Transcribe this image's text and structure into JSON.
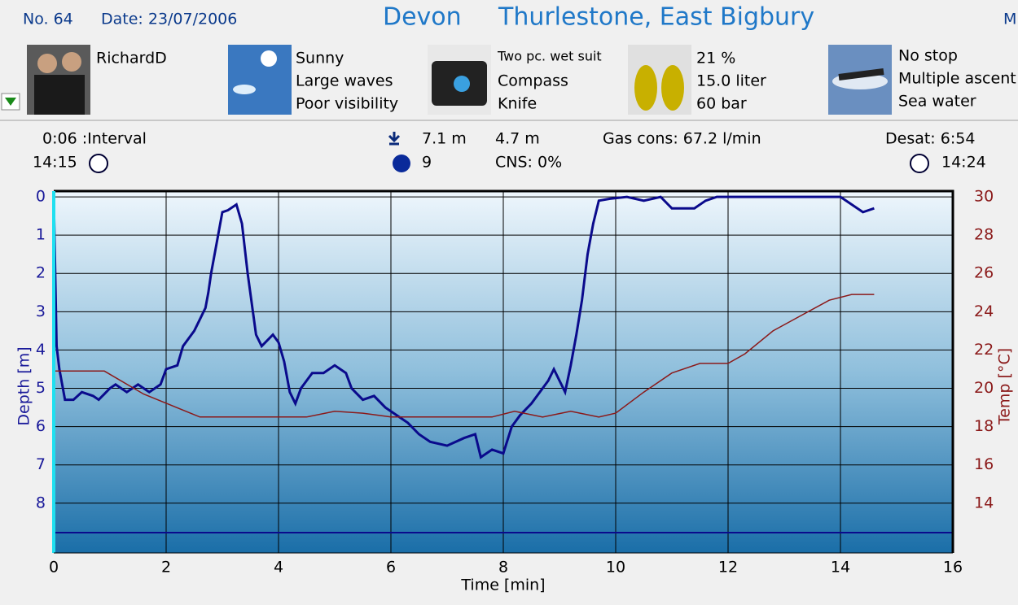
{
  "header": {
    "number": "No. 64",
    "date": "Date: 23/07/2006",
    "region": "Devon",
    "site": "Thurlestone, East Bigbury",
    "cut": "M"
  },
  "panels": [
    {
      "lines": [
        "RichardD"
      ]
    },
    {
      "lines": [
        "Sunny",
        "Large waves",
        "Poor visibility"
      ]
    },
    {
      "lines": [
        "Two pc. wet suit",
        "Compass",
        "Knife"
      ]
    },
    {
      "lines": [
        "21 %",
        "15.0 liter",
        "60 bar"
      ]
    },
    {
      "lines": [
        "No stop",
        "Multiple ascent",
        "Sea water"
      ]
    }
  ],
  "stats": {
    "interval": "0:06 :Interval",
    "start": "14:15",
    "max_depth": "7.1 m",
    "duration": "9",
    "avg_depth": "4.7 m",
    "cns": "CNS:  0%",
    "gas": "Gas cons: 67.2 l/min",
    "desat": "Desat:  6:54",
    "end": "14:24"
  },
  "chart_data": {
    "type": "line",
    "x_label": "Time [min]",
    "y_label": "Depth [m]",
    "y2_label": "Temp [°C]",
    "xlim": [
      0,
      16
    ],
    "xticks": [
      0,
      2,
      4,
      6,
      8,
      10,
      12,
      14,
      16
    ],
    "ylim": [
      9.3,
      -0.15
    ],
    "yticks": [
      0,
      1,
      2,
      3,
      4,
      5,
      6,
      7,
      8
    ],
    "y2lim": [
      11.4,
      30.3
    ],
    "y2ticks": [
      14,
      16,
      18,
      20,
      22,
      24,
      26,
      28,
      30
    ],
    "grid": true,
    "series": [
      {
        "color": "#0a0a8c",
        "x": [
          0,
          0.05,
          0.1,
          0.2,
          0.35,
          0.5,
          0.7,
          0.8,
          1.0,
          1.1,
          1.3,
          1.5,
          1.7,
          1.9,
          2.0,
          2.2,
          2.3,
          2.5,
          2.6,
          2.7,
          2.75,
          2.8,
          2.9,
          3.0,
          3.1,
          3.25,
          3.35,
          3.45,
          3.6,
          3.7,
          3.9,
          4.0,
          4.1,
          4.2,
          4.3,
          4.4,
          4.6,
          4.8,
          5.0,
          5.2,
          5.3,
          5.5,
          5.7,
          5.9,
          6.1,
          6.3,
          6.5,
          6.7,
          7.0,
          7.3,
          7.5,
          7.6,
          7.8,
          8.0,
          8.15,
          8.3,
          8.5,
          8.7,
          8.8,
          8.9,
          9.0,
          9.1,
          9.2,
          9.3,
          9.4,
          9.5,
          9.6,
          9.7,
          9.9,
          10.2,
          10.5,
          10.8,
          11.0,
          11.4,
          11.6,
          11.8,
          12.5,
          13.5,
          14.0,
          14.2,
          14.4,
          14.6
        ],
        "values": [
          0,
          3.9,
          4.5,
          5.3,
          5.3,
          5.1,
          5.2,
          5.3,
          5.0,
          4.9,
          5.1,
          4.9,
          5.1,
          4.9,
          4.5,
          4.4,
          3.9,
          3.5,
          3.2,
          2.9,
          2.5,
          2.0,
          1.2,
          0.4,
          0.35,
          0.2,
          0.7,
          2.0,
          3.6,
          3.9,
          3.6,
          3.8,
          4.3,
          5.1,
          5.4,
          5.0,
          4.6,
          4.6,
          4.4,
          4.6,
          5.0,
          5.3,
          5.2,
          5.5,
          5.7,
          5.9,
          6.2,
          6.4,
          6.5,
          6.3,
          6.2,
          6.8,
          6.6,
          6.7,
          6.0,
          5.7,
          5.4,
          5.0,
          4.8,
          4.5,
          4.8,
          5.1,
          4.4,
          3.6,
          2.7,
          1.5,
          0.7,
          0.1,
          0.05,
          0,
          0.1,
          0,
          0.3,
          0.3,
          0.1,
          0,
          0,
          0,
          0,
          0.2,
          0.4,
          0.3
        ]
      },
      {
        "color": "#8b1a1a",
        "axis": "y2",
        "x": [
          0,
          0.9,
          1.6,
          2.6,
          4.5,
          5.0,
          5.5,
          6.0,
          7.8,
          8.2,
          8.7,
          9.2,
          9.7,
          10.0,
          10.5,
          11.0,
          11.5,
          12.0,
          12.3,
          12.8,
          13.3,
          13.8,
          14.2,
          14.6
        ],
        "values": [
          20.9,
          20.9,
          19.7,
          18.5,
          18.5,
          18.8,
          18.7,
          18.5,
          18.5,
          18.8,
          18.5,
          18.8,
          18.5,
          18.7,
          19.8,
          20.8,
          21.3,
          21.3,
          21.8,
          23.0,
          23.8,
          24.6,
          24.9,
          24.9
        ]
      }
    ]
  }
}
